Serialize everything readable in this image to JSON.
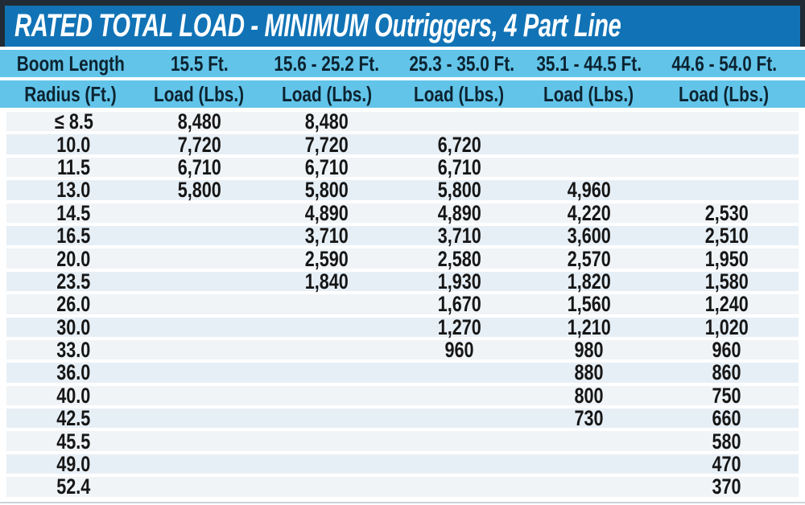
{
  "title": "RATED TOTAL LOAD - MINIMUM Outriggers, 4 Part Line",
  "colors": {
    "frame_dark_navy": "#202b35",
    "title_bar_blue": "#1173b6",
    "title_text": "#ffffff",
    "header_light_blue": "#62c4e9",
    "header_text_navy": "#0c2330",
    "row_stripe_light": "#f0f4f7",
    "row_stripe_alt": "#e7eff6",
    "data_text": "#161616"
  },
  "chart_data": {
    "type": "table",
    "title": "RATED TOTAL LOAD - MINIMUM Outriggers, 4 Part Line",
    "header": {
      "boom_length_label": "Boom Length",
      "radius_label": "Radius (Ft.)",
      "load_label": "Load (Lbs.)",
      "boom_ranges": [
        "15.5 Ft.",
        "15.6 - 25.2 Ft.",
        "25.3 - 35.0 Ft.",
        "35.1 - 44.5 Ft.",
        "44.6 - 54.0 Ft."
      ]
    },
    "units": {
      "radius": "Ft.",
      "load": "Lbs."
    },
    "rows": [
      {
        "radius": "≤ 8.5",
        "loads": [
          "8,480",
          "8,480",
          "",
          "",
          ""
        ]
      },
      {
        "radius": "10.0",
        "loads": [
          "7,720",
          "7,720",
          "6,720",
          "",
          ""
        ]
      },
      {
        "radius": "11.5",
        "loads": [
          "6,710",
          "6,710",
          "6,710",
          "",
          ""
        ]
      },
      {
        "radius": "13.0",
        "loads": [
          "5,800",
          "5,800",
          "5,800",
          "4,960",
          ""
        ]
      },
      {
        "radius": "14.5",
        "loads": [
          "",
          "4,890",
          "4,890",
          "4,220",
          "2,530"
        ]
      },
      {
        "radius": "16.5",
        "loads": [
          "",
          "3,710",
          "3,710",
          "3,600",
          "2,510"
        ]
      },
      {
        "radius": "20.0",
        "loads": [
          "",
          "2,590",
          "2,580",
          "2,570",
          "1,950"
        ]
      },
      {
        "radius": "23.5",
        "loads": [
          "",
          "1,840",
          "1,930",
          "1,820",
          "1,580"
        ]
      },
      {
        "radius": "26.0",
        "loads": [
          "",
          "",
          "1,670",
          "1,560",
          "1,240"
        ]
      },
      {
        "radius": "30.0",
        "loads": [
          "",
          "",
          "1,270",
          "1,210",
          "1,020"
        ]
      },
      {
        "radius": "33.0",
        "loads": [
          "",
          "",
          "960",
          "980",
          "960"
        ]
      },
      {
        "radius": "36.0",
        "loads": [
          "",
          "",
          "",
          "880",
          "860"
        ]
      },
      {
        "radius": "40.0",
        "loads": [
          "",
          "",
          "",
          "800",
          "750"
        ]
      },
      {
        "radius": "42.5",
        "loads": [
          "",
          "",
          "",
          "730",
          "660"
        ]
      },
      {
        "radius": "45.5",
        "loads": [
          "",
          "",
          "",
          "",
          "580"
        ]
      },
      {
        "radius": "49.0",
        "loads": [
          "",
          "",
          "",
          "",
          "470"
        ]
      },
      {
        "radius": "52.4",
        "loads": [
          "",
          "",
          "",
          "",
          "370"
        ]
      }
    ]
  }
}
